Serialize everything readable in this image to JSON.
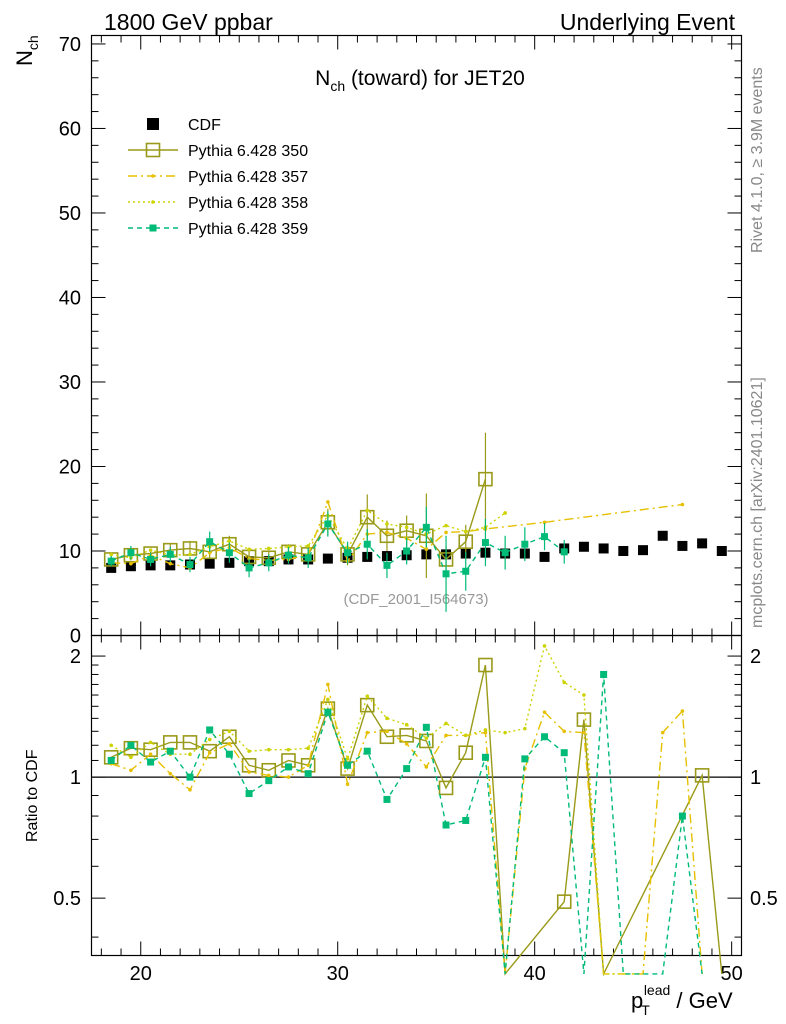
{
  "header": {
    "left": "1800 GeV ppbar",
    "right": "Underlying Event"
  },
  "side_labels": {
    "rivet": "Rivet 4.1.0, ≥ 3.9M events",
    "mcplots": "mcplots.cern.ch [arXiv:2401.10621]"
  },
  "colors": {
    "cdf": "#000000",
    "p350": "#9a9a1a",
    "p357": "#e6c000",
    "p358": "#cdd300",
    "p359": "#00bb77"
  },
  "chart_data": {
    "type": "line",
    "title_main": "N",
    "title_sub": "ch",
    "title_rest": " (toward) for JET20",
    "ylabel_main": "N",
    "ylabel_sub": "ch",
    "ratio_ylabel": "Ratio to CDF",
    "xlabel_main": "p",
    "xlabel_sub": "T",
    "xlabel_sup": "lead",
    "xlabel_rest": " / GeV",
    "watermark": "(CDF_2001_I564673)",
    "xlim": [
      17.5,
      50.5
    ],
    "ylim": [
      0,
      71
    ],
    "ratio_ylim": [
      0.36,
      2.25
    ],
    "xticks": [
      20,
      30,
      40,
      50
    ],
    "yticks": [
      0,
      10,
      20,
      30,
      40,
      50,
      60,
      70
    ],
    "ratio_yticks": [
      0.5,
      1,
      2
    ],
    "series": [
      {
        "name": "CDF",
        "style": "cdf",
        "x": [
          18.5,
          19.5,
          20.5,
          21.5,
          22.5,
          23.5,
          24.5,
          25.5,
          26.5,
          27.5,
          28.5,
          29.5,
          30.5,
          31.5,
          32.5,
          33.5,
          34.5,
          35.5,
          36.5,
          37.5,
          38.5,
          39.5,
          40.5,
          41.5,
          42.5,
          43.5,
          44.5,
          45.5,
          46.5,
          47.5,
          48.5,
          49.5
        ],
        "y": [
          8.0,
          8.2,
          8.3,
          8.3,
          8.4,
          8.5,
          8.6,
          8.8,
          8.8,
          9.0,
          9.0,
          9.1,
          9.2,
          9.3,
          9.4,
          9.5,
          9.6,
          9.6,
          9.7,
          9.8,
          9.7,
          9.7,
          9.3,
          10.3,
          10.5,
          10.3,
          10.0,
          10.1,
          11.8,
          10.6,
          10.9,
          10.0
        ]
      },
      {
        "name": "Pythia 6.428 350",
        "style": "p350",
        "x": [
          18.5,
          19.5,
          20.5,
          21.5,
          22.5,
          23.5,
          24.5,
          25.5,
          26.5,
          27.5,
          28.5,
          29.5,
          30.5,
          31.5,
          32.5,
          33.5,
          34.5,
          35.5,
          36.5,
          37.5
        ],
        "y": [
          9.0,
          9.5,
          9.7,
          10.1,
          10.3,
          9.9,
          10.8,
          9.3,
          9.2,
          9.9,
          9.6,
          13.4,
          9.6,
          14.0,
          11.8,
          12.4,
          11.8,
          9.0,
          11.1,
          18.5
        ],
        "err": [
          0.5,
          0.6,
          0.6,
          0.8,
          0.9,
          0.8,
          1.0,
          0.8,
          0.8,
          0.9,
          1.0,
          1.6,
          1.3,
          2.7,
          1.8,
          1.8,
          5.0,
          1.6,
          2.0,
          5.5
        ],
        "ratio_x": [
          18.5,
          19.5,
          20.5,
          21.5,
          22.5,
          23.5,
          24.5,
          25.5,
          26.5,
          27.5,
          28.5,
          29.5,
          30.5,
          31.5,
          32.5,
          33.5,
          34.5,
          35.5,
          36.5,
          37.5,
          38.5,
          41.5,
          42.5,
          43.5,
          48.5,
          49.5
        ],
        "ratio": [
          1.12,
          1.18,
          1.17,
          1.22,
          1.22,
          1.16,
          1.26,
          1.07,
          1.04,
          1.1,
          1.07,
          1.48,
          1.05,
          1.51,
          1.26,
          1.27,
          1.23,
          0.94,
          1.15,
          1.9,
          0.3,
          0.49,
          1.39,
          0.3,
          1.01,
          0.3
        ]
      },
      {
        "name": "Pythia 6.428 357",
        "style": "p357",
        "x": [
          18.5,
          19.5,
          20.5,
          21.5,
          22.5,
          23.5,
          24.5,
          25.5,
          26.5,
          27.5,
          28.5,
          29.5,
          30.5,
          31.5,
          32.5,
          33.5,
          34.5,
          35.5,
          36.5,
          37.5,
          40.5,
          47.5
        ],
        "y": [
          8.6,
          8.5,
          9.5,
          8.5,
          8.0,
          9.8,
          10.4,
          9.1,
          8.9,
          9.0,
          9.6,
          15.8,
          8.8,
          12.0,
          12.2,
          11.5,
          10.2,
          12.2,
          12.3,
          12.6,
          13.4,
          15.5
        ],
        "ratio_x": [
          18.5,
          19.5,
          20.5,
          21.5,
          22.5,
          23.5,
          24.5,
          25.5,
          26.5,
          27.5,
          28.5,
          29.5,
          30.5,
          31.5,
          32.5,
          33.5,
          34.5,
          35.5,
          36.5,
          37.5,
          38.5,
          39.5,
          40.5,
          41.5,
          42.5,
          43.5,
          44.5,
          45.5,
          46.5,
          47.5,
          48.5
        ],
        "ratio": [
          1.08,
          1.04,
          1.14,
          1.02,
          0.93,
          1.15,
          1.21,
          1.03,
          1.01,
          1.0,
          1.07,
          1.7,
          0.96,
          1.29,
          1.3,
          1.21,
          1.06,
          1.27,
          1.27,
          1.29,
          0.3,
          1.05,
          1.45,
          1.3,
          1.29,
          0.3,
          0.3,
          0.3,
          1.29,
          1.46,
          0.3
        ]
      },
      {
        "name": "Pythia 6.428 358",
        "style": "p358",
        "x": [
          18.5,
          19.5,
          20.5,
          21.5,
          22.5,
          23.5,
          24.5,
          25.5,
          26.5,
          27.5,
          28.5,
          29.5,
          30.5,
          31.5,
          32.5,
          33.5,
          34.5,
          35.5,
          36.5,
          37.5,
          38.5
        ],
        "y": [
          9.6,
          9.2,
          10.1,
          9.5,
          9.6,
          10.5,
          11.2,
          10.2,
          10.3,
          10.5,
          10.6,
          14.2,
          10.2,
          14.8,
          13.2,
          12.8,
          12.0,
          13.0,
          12.3,
          12.8,
          14.5
        ],
        "ratio_x": [
          18.5,
          19.5,
          20.5,
          21.5,
          22.5,
          23.5,
          24.5,
          25.5,
          26.5,
          27.5,
          28.5,
          29.5,
          30.5,
          31.5,
          32.5,
          33.5,
          34.5,
          35.5,
          36.5,
          37.5,
          38.5,
          39.5,
          40.5,
          41.5,
          42.5,
          43.5,
          44.5,
          45.5
        ],
        "ratio": [
          1.2,
          1.12,
          1.22,
          1.14,
          1.14,
          1.24,
          1.3,
          1.16,
          1.17,
          1.17,
          1.18,
          1.56,
          1.11,
          1.59,
          1.4,
          1.35,
          1.25,
          1.36,
          1.27,
          1.31,
          1.29,
          1.32,
          2.12,
          1.72,
          1.6,
          0.3,
          0.3,
          0.3
        ]
      },
      {
        "name": "Pythia 6.428 359",
        "style": "p359",
        "x": [
          18.5,
          19.5,
          20.5,
          21.5,
          22.5,
          23.5,
          24.5,
          25.5,
          26.5,
          27.5,
          28.5,
          29.5,
          30.5,
          31.5,
          32.5,
          33.5,
          34.5,
          35.5,
          36.5,
          37.5,
          38.5,
          39.5,
          40.5,
          41.5
        ],
        "y": [
          8.8,
          9.8,
          9.0,
          9.6,
          8.4,
          11.1,
          9.8,
          8.0,
          8.6,
          9.5,
          9.2,
          13.2,
          9.8,
          10.8,
          8.3,
          10.0,
          12.8,
          7.3,
          7.6,
          11.0,
          9.8,
          10.8,
          11.7,
          9.9
        ],
        "err": [
          0.6,
          0.8,
          0.8,
          0.9,
          0.9,
          1.2,
          1.2,
          1.1,
          1.0,
          1.0,
          1.2,
          1.5,
          1.3,
          1.8,
          1.5,
          1.6,
          2.4,
          4.5,
          2.3,
          2.8,
          2.0,
          2.0,
          1.6,
          1.4
        ],
        "ratio_x": [
          18.5,
          19.5,
          20.5,
          21.5,
          22.5,
          23.5,
          24.5,
          25.5,
          26.5,
          27.5,
          28.5,
          29.5,
          30.5,
          31.5,
          32.5,
          33.5,
          34.5,
          35.5,
          36.5,
          37.5,
          38.5,
          39.5,
          40.5,
          41.5,
          42.5,
          43.5,
          44.5,
          46.5,
          47.5,
          48.5
        ],
        "ratio": [
          1.1,
          1.2,
          1.09,
          1.16,
          1.0,
          1.31,
          1.14,
          0.91,
          0.98,
          1.06,
          1.02,
          1.45,
          1.07,
          1.16,
          0.88,
          1.05,
          1.33,
          0.76,
          0.78,
          1.12,
          0.3,
          1.11,
          1.26,
          1.15,
          0.3,
          1.8,
          0.3,
          0.3,
          0.8,
          0.3
        ]
      }
    ]
  }
}
